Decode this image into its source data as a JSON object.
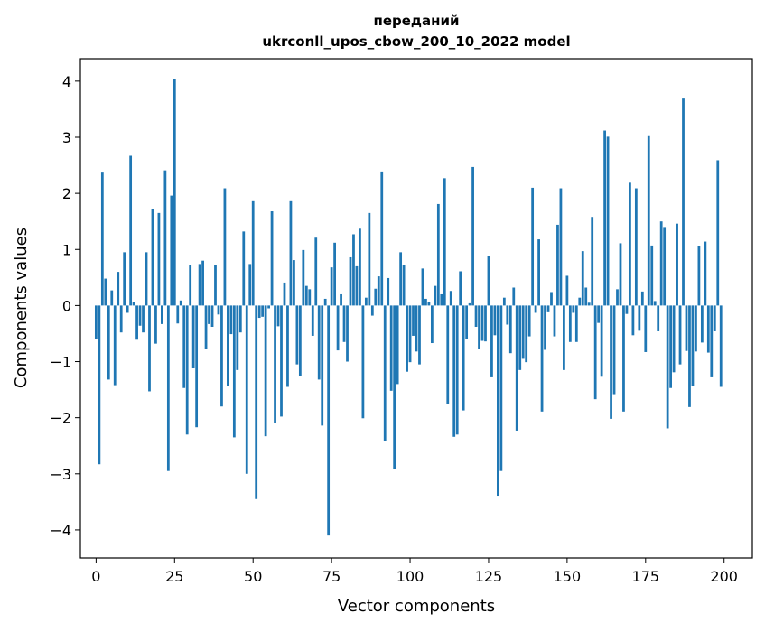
{
  "chart_data": {
    "type": "bar",
    "title_line1": "переданий",
    "title_line2": "ukrconll_upos_cbow_200_10_2022 model",
    "xlabel": "Vector components",
    "ylabel": "Components values",
    "xlim": [
      -5,
      209
    ],
    "ylim": [
      -4.5,
      4.4
    ],
    "xticks": [
      0,
      25,
      50,
      75,
      100,
      125,
      150,
      175,
      200
    ],
    "xtick_labels": [
      "0",
      "25",
      "50",
      "75",
      "100",
      "125",
      "150",
      "175",
      "200"
    ],
    "yticks": [
      -4,
      -3,
      -2,
      -1,
      0,
      1,
      2,
      3,
      4
    ],
    "ytick_labels": [
      "−4",
      "−3",
      "−2",
      "−1",
      "0",
      "1",
      "2",
      "3",
      "4"
    ],
    "bar_color": "#1f77b4",
    "grid": false,
    "legend": "none",
    "values": [
      -0.6,
      -2.83,
      2.37,
      0.48,
      -1.32,
      0.27,
      -1.42,
      0.6,
      -0.48,
      0.95,
      -0.13,
      2.67,
      0.06,
      -0.61,
      -0.36,
      -0.48,
      0.95,
      -1.53,
      1.72,
      -0.68,
      1.65,
      -0.33,
      2.41,
      -2.95,
      1.96,
      4.03,
      -0.32,
      0.09,
      -1.47,
      -2.3,
      0.72,
      -1.12,
      -2.17,
      0.74,
      0.8,
      -0.77,
      -0.33,
      -0.38,
      0.73,
      -0.16,
      -1.8,
      2.09,
      -1.43,
      -0.51,
      -2.35,
      -1.15,
      -0.48,
      1.32,
      -3.0,
      0.74,
      1.86,
      -3.45,
      -0.22,
      -0.2,
      -2.33,
      -0.05,
      1.68,
      -2.1,
      -0.37,
      -1.98,
      0.41,
      -1.45,
      1.86,
      0.81,
      -1.05,
      -1.25,
      0.99,
      0.35,
      0.29,
      -0.54,
      1.21,
      -1.32,
      -2.14,
      0.12,
      -4.1,
      0.68,
      1.12,
      -0.8,
      0.2,
      -0.65,
      -1.0,
      0.86,
      1.27,
      0.7,
      1.37,
      -2.01,
      0.14,
      1.65,
      -0.18,
      0.3,
      0.52,
      2.39,
      -2.42,
      0.49,
      -1.52,
      -2.92,
      -1.4,
      0.95,
      0.72,
      -1.18,
      -1.01,
      -0.54,
      -0.82,
      -1.05,
      0.66,
      0.12,
      0.06,
      -0.67,
      0.35,
      1.81,
      0.2,
      2.27,
      -1.75,
      0.26,
      -2.34,
      -2.3,
      0.61,
      -1.87,
      -0.6,
      0.04,
      2.47,
      -0.38,
      -0.78,
      -0.63,
      -0.64,
      0.89,
      -1.28,
      -0.53,
      -3.39,
      -2.95,
      0.14,
      -0.34,
      -0.85,
      0.32,
      -2.23,
      -1.15,
      -0.95,
      -1.01,
      -0.55,
      2.1,
      -0.13,
      1.18,
      -1.89,
      -0.79,
      -0.12,
      0.24,
      -0.55,
      1.44,
      2.09,
      -1.15,
      0.53,
      -0.65,
      -0.13,
      -0.65,
      0.14,
      0.97,
      0.32,
      0.05,
      1.58,
      -1.67,
      -0.31,
      -1.27,
      3.12,
      3.01,
      -2.02,
      -1.58,
      0.29,
      1.11,
      -1.89,
      -0.15,
      2.19,
      -0.53,
      2.09,
      -0.45,
      0.25,
      -0.83,
      3.02,
      1.07,
      0.08,
      -0.46,
      1.5,
      1.4,
      -2.19,
      -1.47,
      -1.19,
      1.46,
      -1.05,
      3.69,
      -0.81,
      -1.81,
      -1.43,
      -0.82,
      1.06,
      -0.66,
      1.14,
      -0.84,
      -1.28,
      -0.46,
      2.59,
      -1.45
    ]
  }
}
